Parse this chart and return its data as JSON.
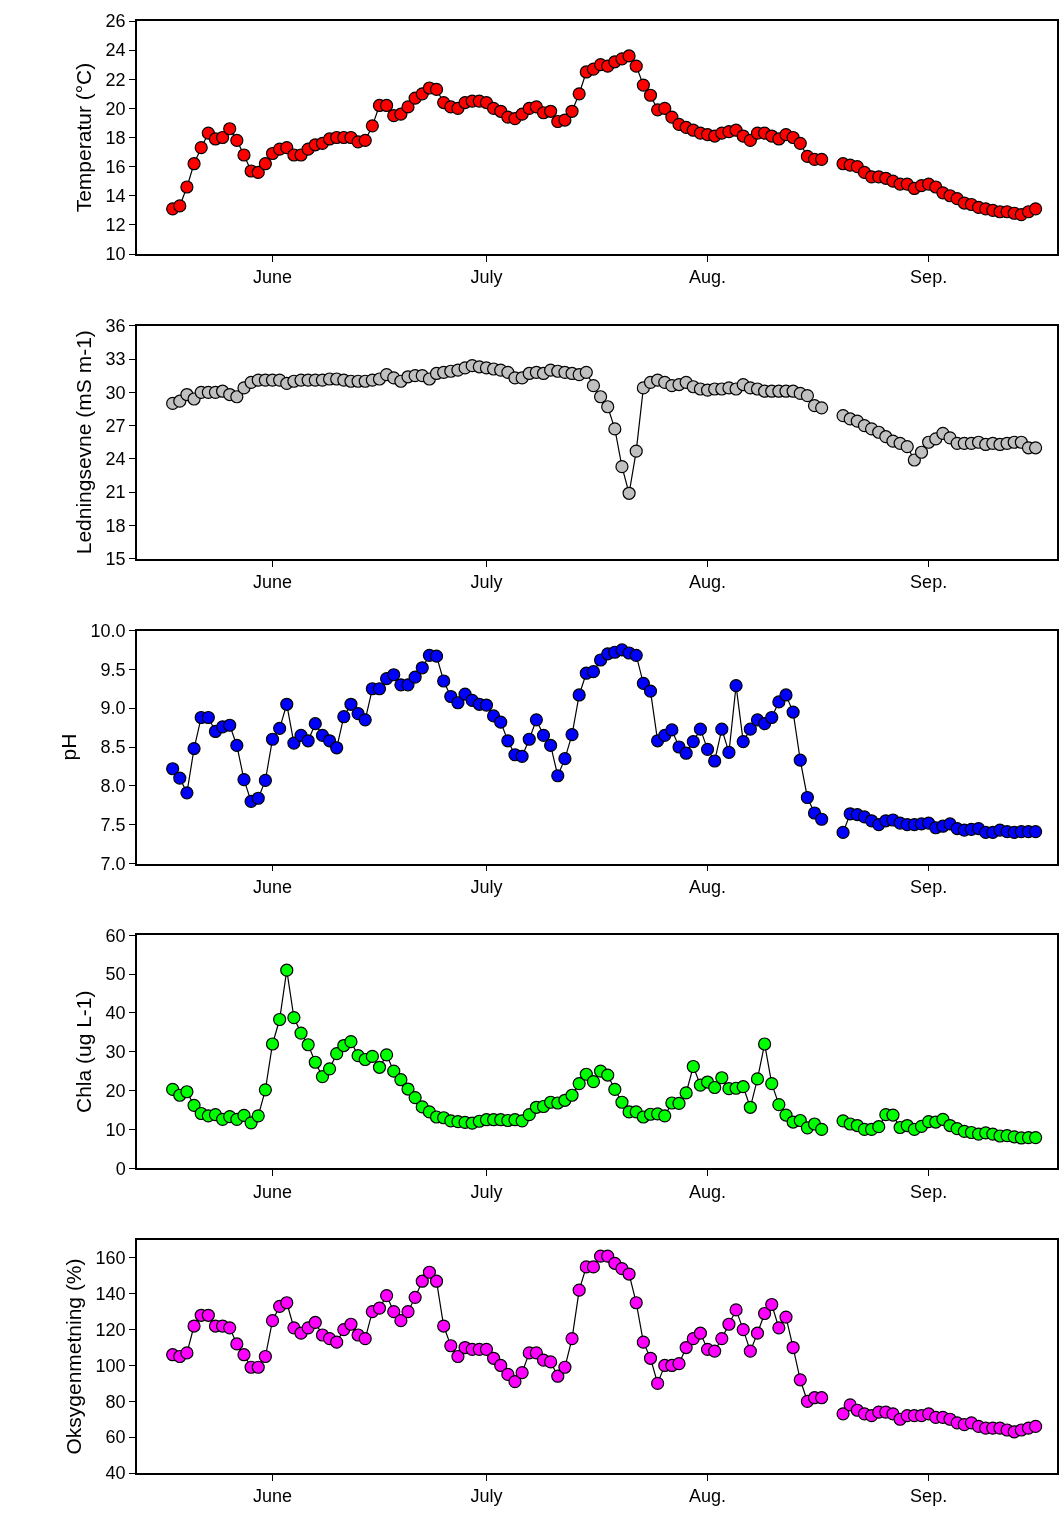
{
  "chart_data": [
    {
      "type": "line",
      "marker": "circle",
      "ylabel": "Temperatur (°C)",
      "ylim": [
        10,
        26
      ],
      "yticks": [
        10,
        12,
        14,
        16,
        18,
        20,
        22,
        24,
        26
      ],
      "xlim": [
        "--05-13",
        "--09-19"
      ],
      "xticks": [
        {
          "value": "--06-01",
          "label": "June"
        },
        {
          "value": "--07-01",
          "label": "July"
        },
        {
          "value": "--08-01",
          "label": "Aug."
        },
        {
          "value": "--09-01",
          "label": "Sep."
        }
      ],
      "x": [
        "--05-18",
        "--05-19",
        "--05-20",
        "--05-21",
        "--05-22",
        "--05-23",
        "--05-24",
        "--05-25",
        "--05-26",
        "--05-27",
        "--05-28",
        "--05-29",
        "--05-30",
        "--05-31",
        "--06-01",
        "--06-02",
        "--06-03",
        "--06-04",
        "--06-05",
        "--06-06",
        "--06-07",
        "--06-08",
        "--06-09",
        "--06-10",
        "--06-11",
        "--06-12",
        "--06-13",
        "--06-14",
        "--06-15",
        "--06-16",
        "--06-17",
        "--06-18",
        "--06-19",
        "--06-20",
        "--06-21",
        "--06-22",
        "--06-23",
        "--06-24",
        "--06-25",
        "--06-26",
        "--06-27",
        "--06-28",
        "--06-29",
        "--06-30",
        "--07-01",
        "--07-02",
        "--07-03",
        "--07-04",
        "--07-05",
        "--07-06",
        "--07-07",
        "--07-08",
        "--07-09",
        "--07-10",
        "--07-11",
        "--07-12",
        "--07-13",
        "--07-14",
        "--07-15",
        "--07-16",
        "--07-17",
        "--07-18",
        "--07-19",
        "--07-20",
        "--07-21",
        "--07-22",
        "--07-23",
        "--07-24",
        "--07-25",
        "--07-26",
        "--07-27",
        "--07-28",
        "--07-29",
        "--07-30",
        "--07-31",
        "--08-01",
        "--08-02",
        "--08-03",
        "--08-04",
        "--08-05",
        "--08-06",
        "--08-07",
        "--08-08",
        "--08-09",
        "--08-10",
        "--08-11",
        "--08-12",
        "--08-13",
        "--08-14",
        "--08-15",
        "--08-16",
        "--08-17",
        "--08-18",
        "--08-19",
        "--08-20",
        "--08-21",
        "--08-22",
        "--08-23",
        "--08-24",
        "--08-25",
        "--08-26",
        "--08-27",
        "--08-28",
        "--08-29",
        "--08-30",
        "--08-31",
        "--09-01",
        "--09-02",
        "--09-03",
        "--09-04",
        "--09-05",
        "--09-06",
        "--09-07",
        "--09-08",
        "--09-09",
        "--09-10",
        "--09-11",
        "--09-12",
        "--09-13",
        "--09-14",
        "--09-15",
        "--09-16"
      ],
      "series": [
        {
          "color": "#ff0000",
          "values": [
            13.1,
            13.3,
            14.6,
            16.2,
            17.3,
            18.3,
            17.9,
            18.0,
            18.6,
            17.8,
            16.8,
            15.7,
            15.6,
            16.2,
            16.9,
            17.2,
            17.3,
            16.8,
            16.8,
            17.2,
            17.5,
            17.6,
            17.9,
            18.0,
            18.0,
            18.0,
            17.7,
            17.8,
            18.8,
            20.2,
            20.2,
            19.5,
            19.6,
            20.1,
            20.7,
            21.0,
            21.4,
            21.3,
            20.4,
            20.1,
            20.0,
            20.4,
            20.5,
            20.5,
            20.4,
            20.0,
            19.8,
            19.4,
            19.3,
            19.6,
            20.0,
            20.1,
            19.7,
            19.8,
            19.1,
            19.2,
            19.8,
            21.0,
            22.5,
            22.7,
            23.0,
            22.9,
            23.2,
            23.4,
            23.6,
            22.9,
            21.6,
            20.9,
            19.9,
            20.0,
            19.4,
            18.9,
            18.7,
            18.5,
            18.3,
            18.2,
            18.1,
            18.3,
            18.4,
            18.5,
            18.1,
            17.8,
            18.3,
            18.3,
            18.1,
            17.9,
            18.2,
            18.0,
            17.6,
            16.7,
            16.5,
            16.5,
            null,
            null,
            16.2,
            16.1,
            16.0,
            15.6,
            15.3,
            15.3,
            15.2,
            15.0,
            14.8,
            14.8,
            14.5,
            14.7,
            14.8,
            14.6,
            14.2,
            14.0,
            13.8,
            13.5,
            13.4,
            13.2,
            13.1,
            13.0,
            12.9,
            12.9,
            12.8,
            12.7,
            12.9,
            13.1
          ]
        }
      ]
    },
    {
      "type": "line",
      "marker": "circle",
      "ylabel": "Ledningsevne (mS m-1)",
      "ylim": [
        15,
        36
      ],
      "yticks": [
        15,
        18,
        21,
        24,
        27,
        30,
        33,
        36
      ],
      "xlim": [
        "--05-13",
        "--09-19"
      ],
      "xticks": [
        {
          "value": "--06-01",
          "label": "June"
        },
        {
          "value": "--07-01",
          "label": "July"
        },
        {
          "value": "--08-01",
          "label": "Aug."
        },
        {
          "value": "--09-01",
          "label": "Sep."
        }
      ],
      "x": [
        "--05-18",
        "--05-19",
        "--05-20",
        "--05-21",
        "--05-22",
        "--05-23",
        "--05-24",
        "--05-25",
        "--05-26",
        "--05-27",
        "--05-28",
        "--05-29",
        "--05-30",
        "--05-31",
        "--06-01",
        "--06-02",
        "--06-03",
        "--06-04",
        "--06-05",
        "--06-06",
        "--06-07",
        "--06-08",
        "--06-09",
        "--06-10",
        "--06-11",
        "--06-12",
        "--06-13",
        "--06-14",
        "--06-15",
        "--06-16",
        "--06-17",
        "--06-18",
        "--06-19",
        "--06-20",
        "--06-21",
        "--06-22",
        "--06-23",
        "--06-24",
        "--06-25",
        "--06-26",
        "--06-27",
        "--06-28",
        "--06-29",
        "--06-30",
        "--07-01",
        "--07-02",
        "--07-03",
        "--07-04",
        "--07-05",
        "--07-06",
        "--07-07",
        "--07-08",
        "--07-09",
        "--07-10",
        "--07-11",
        "--07-12",
        "--07-13",
        "--07-14",
        "--07-15",
        "--07-16",
        "--07-17",
        "--07-18",
        "--07-19",
        "--07-20",
        "--07-21",
        "--07-22",
        "--07-23",
        "--07-24",
        "--07-25",
        "--07-26",
        "--07-27",
        "--07-28",
        "--07-29",
        "--07-30",
        "--07-31",
        "--08-01",
        "--08-02",
        "--08-03",
        "--08-04",
        "--08-05",
        "--08-06",
        "--08-07",
        "--08-08",
        "--08-09",
        "--08-10",
        "--08-11",
        "--08-12",
        "--08-13",
        "--08-14",
        "--08-15",
        "--08-16",
        "--08-17",
        "--08-18",
        "--08-19",
        "--08-20",
        "--08-21",
        "--08-22",
        "--08-23",
        "--08-24",
        "--08-25",
        "--08-26",
        "--08-27",
        "--08-28",
        "--08-29",
        "--08-30",
        "--08-31",
        "--09-01",
        "--09-02",
        "--09-03",
        "--09-04",
        "--09-05",
        "--09-06",
        "--09-07",
        "--09-08",
        "--09-09",
        "--09-10",
        "--09-11",
        "--09-12",
        "--09-13",
        "--09-14",
        "--09-15",
        "--09-16"
      ],
      "series": [
        {
          "color": "#c0c0c0",
          "values": [
            29.0,
            29.2,
            29.8,
            29.4,
            30.0,
            30.0,
            30.0,
            30.1,
            29.8,
            29.6,
            30.4,
            30.9,
            31.1,
            31.1,
            31.1,
            31.1,
            30.8,
            31.0,
            31.1,
            31.1,
            31.1,
            31.1,
            31.2,
            31.2,
            31.1,
            31.0,
            31.0,
            31.0,
            31.1,
            31.2,
            31.6,
            31.3,
            31.0,
            31.4,
            31.5,
            31.5,
            31.2,
            31.7,
            31.8,
            31.9,
            32.0,
            32.2,
            32.4,
            32.3,
            32.2,
            32.1,
            32.0,
            31.8,
            31.3,
            31.3,
            31.7,
            31.8,
            31.7,
            32.0,
            31.9,
            31.8,
            31.7,
            31.6,
            31.8,
            30.6,
            29.6,
            28.7,
            26.7,
            23.3,
            20.9,
            24.7,
            30.4,
            30.9,
            31.1,
            30.9,
            30.6,
            30.7,
            30.9,
            30.5,
            30.3,
            30.2,
            30.3,
            30.3,
            30.4,
            30.3,
            30.7,
            30.4,
            30.3,
            30.1,
            30.1,
            30.1,
            30.1,
            30.1,
            29.9,
            29.7,
            28.8,
            28.6,
            null,
            null,
            27.9,
            27.6,
            27.4,
            27.0,
            26.7,
            26.4,
            26.0,
            25.6,
            25.4,
            25.1,
            23.9,
            24.6,
            25.5,
            25.8,
            26.3,
            25.9,
            25.4,
            25.4,
            25.4,
            25.5,
            25.3,
            25.4,
            25.3,
            25.4,
            25.5,
            25.5,
            25.0,
            25.0
          ]
        }
      ]
    },
    {
      "type": "line",
      "marker": "circle",
      "ylabel": "pH",
      "ylim": [
        7,
        10
      ],
      "yticks": [
        {
          "value": 7,
          "label": "7.0"
        },
        7.5,
        {
          "value": 8,
          "label": "8.0"
        },
        8.5,
        {
          "value": 9,
          "label": "9.0"
        },
        9.5,
        {
          "value": 10,
          "label": "10.0"
        }
      ],
      "xlim": [
        "--05-13",
        "--09-19"
      ],
      "xticks": [
        {
          "value": "--06-01",
          "label": "June"
        },
        {
          "value": "--07-01",
          "label": "July"
        },
        {
          "value": "--08-01",
          "label": "Aug."
        },
        {
          "value": "--09-01",
          "label": "Sep."
        }
      ],
      "x": [
        "--05-18",
        "--05-19",
        "--05-20",
        "--05-21",
        "--05-22",
        "--05-23",
        "--05-24",
        "--05-25",
        "--05-26",
        "--05-27",
        "--05-28",
        "--05-29",
        "--05-30",
        "--05-31",
        "--06-01",
        "--06-02",
        "--06-03",
        "--06-04",
        "--06-05",
        "--06-06",
        "--06-07",
        "--06-08",
        "--06-09",
        "--06-10",
        "--06-11",
        "--06-12",
        "--06-13",
        "--06-14",
        "--06-15",
        "--06-16",
        "--06-17",
        "--06-18",
        "--06-19",
        "--06-20",
        "--06-21",
        "--06-22",
        "--06-23",
        "--06-24",
        "--06-25",
        "--06-26",
        "--06-27",
        "--06-28",
        "--06-29",
        "--06-30",
        "--07-01",
        "--07-02",
        "--07-03",
        "--07-04",
        "--07-05",
        "--07-06",
        "--07-07",
        "--07-08",
        "--07-09",
        "--07-10",
        "--07-11",
        "--07-12",
        "--07-13",
        "--07-14",
        "--07-15",
        "--07-16",
        "--07-17",
        "--07-18",
        "--07-19",
        "--07-20",
        "--07-21",
        "--07-22",
        "--07-23",
        "--07-24",
        "--07-25",
        "--07-26",
        "--07-27",
        "--07-28",
        "--07-29",
        "--07-30",
        "--07-31",
        "--08-01",
        "--08-02",
        "--08-03",
        "--08-04",
        "--08-05",
        "--08-06",
        "--08-07",
        "--08-08",
        "--08-09",
        "--08-10",
        "--08-11",
        "--08-12",
        "--08-13",
        "--08-14",
        "--08-15",
        "--08-16",
        "--08-17",
        "--08-18",
        "--08-19",
        "--08-20",
        "--08-21",
        "--08-22",
        "--08-23",
        "--08-24",
        "--08-25",
        "--08-26",
        "--08-27",
        "--08-28",
        "--08-29",
        "--08-30",
        "--08-31",
        "--09-01",
        "--09-02",
        "--09-03",
        "--09-04",
        "--09-05",
        "--09-06",
        "--09-07",
        "--09-08",
        "--09-09",
        "--09-10",
        "--09-11",
        "--09-12",
        "--09-13",
        "--09-14",
        "--09-15",
        "--09-16"
      ],
      "series": [
        {
          "color": "#0000ff",
          "values": [
            8.22,
            8.1,
            7.91,
            8.48,
            8.88,
            8.88,
            8.7,
            8.76,
            8.78,
            8.52,
            8.08,
            7.8,
            7.84,
            8.07,
            8.6,
            8.74,
            9.05,
            8.55,
            8.65,
            8.58,
            8.8,
            8.65,
            8.58,
            8.49,
            8.89,
            9.05,
            8.93,
            8.85,
            9.25,
            9.25,
            9.38,
            9.43,
            9.3,
            9.3,
            9.4,
            9.52,
            9.68,
            9.67,
            9.35,
            9.15,
            9.07,
            9.18,
            9.1,
            9.05,
            9.04,
            8.9,
            8.82,
            8.58,
            8.4,
            8.38,
            8.6,
            8.85,
            8.65,
            8.52,
            8.13,
            8.35,
            8.66,
            9.17,
            9.45,
            9.47,
            9.62,
            9.7,
            9.72,
            9.75,
            9.71,
            9.68,
            9.32,
            9.22,
            8.58,
            8.65,
            8.72,
            8.5,
            8.42,
            8.57,
            8.73,
            8.47,
            8.32,
            8.73,
            8.43,
            9.29,
            8.57,
            8.73,
            8.85,
            8.8,
            8.88,
            9.08,
            9.17,
            8.95,
            8.33,
            7.85,
            7.65,
            7.57,
            null,
            null,
            7.4,
            7.64,
            7.63,
            7.6,
            7.55,
            7.5,
            7.55,
            7.56,
            7.52,
            7.5,
            7.5,
            7.51,
            7.52,
            7.46,
            7.48,
            7.51,
            7.45,
            7.43,
            7.44,
            7.45,
            7.4,
            7.4,
            7.43,
            7.41,
            7.4,
            7.41,
            7.41,
            7.41
          ]
        }
      ]
    },
    {
      "type": "line",
      "marker": "circle",
      "ylabel": "Chla (ug L-1)",
      "ylim": [
        0,
        60
      ],
      "yticks": [
        0,
        10,
        20,
        30,
        40,
        50,
        60
      ],
      "xlim": [
        "--05-13",
        "--09-19"
      ],
      "xticks": [
        {
          "value": "--06-01",
          "label": "June"
        },
        {
          "value": "--07-01",
          "label": "July"
        },
        {
          "value": "--08-01",
          "label": "Aug."
        },
        {
          "value": "--09-01",
          "label": "Sep."
        }
      ],
      "x": [
        "--05-18",
        "--05-19",
        "--05-20",
        "--05-21",
        "--05-22",
        "--05-23",
        "--05-24",
        "--05-25",
        "--05-26",
        "--05-27",
        "--05-28",
        "--05-29",
        "--05-30",
        "--05-31",
        "--06-01",
        "--06-02",
        "--06-03",
        "--06-04",
        "--06-05",
        "--06-06",
        "--06-07",
        "--06-08",
        "--06-09",
        "--06-10",
        "--06-11",
        "--06-12",
        "--06-13",
        "--06-14",
        "--06-15",
        "--06-16",
        "--06-17",
        "--06-18",
        "--06-19",
        "--06-20",
        "--06-21",
        "--06-22",
        "--06-23",
        "--06-24",
        "--06-25",
        "--06-26",
        "--06-27",
        "--06-28",
        "--06-29",
        "--06-30",
        "--07-01",
        "--07-02",
        "--07-03",
        "--07-04",
        "--07-05",
        "--07-06",
        "--07-07",
        "--07-08",
        "--07-09",
        "--07-10",
        "--07-11",
        "--07-12",
        "--07-13",
        "--07-14",
        "--07-15",
        "--07-16",
        "--07-17",
        "--07-18",
        "--07-19",
        "--07-20",
        "--07-21",
        "--07-22",
        "--07-23",
        "--07-24",
        "--07-25",
        "--07-26",
        "--07-27",
        "--07-28",
        "--07-29",
        "--07-30",
        "--07-31",
        "--08-01",
        "--08-02",
        "--08-03",
        "--08-04",
        "--08-05",
        "--08-06",
        "--08-07",
        "--08-08",
        "--08-09",
        "--08-10",
        "--08-11",
        "--08-12",
        "--08-13",
        "--08-14",
        "--08-15",
        "--08-16",
        "--08-17",
        "--08-18",
        "--08-19",
        "--08-20",
        "--08-21",
        "--08-22",
        "--08-23",
        "--08-24",
        "--08-25",
        "--08-26",
        "--08-27",
        "--08-28",
        "--08-29",
        "--08-30",
        "--08-31",
        "--09-01",
        "--09-02",
        "--09-03",
        "--09-04",
        "--09-05",
        "--09-06",
        "--09-07",
        "--09-08",
        "--09-09",
        "--09-10",
        "--09-11",
        "--09-12",
        "--09-13",
        "--09-14",
        "--09-15",
        "--09-16"
      ],
      "series": [
        {
          "color": "#00ff00",
          "values": [
            20.3,
            18.8,
            19.7,
            16.2,
            14.1,
            13.5,
            13.8,
            12.6,
            13.3,
            12.6,
            13.6,
            11.7,
            13.5,
            20.2,
            32.0,
            38.3,
            51.0,
            38.8,
            34.8,
            31.8,
            27.3,
            23.6,
            25.6,
            29.5,
            31.6,
            32.6,
            29.0,
            28.0,
            28.8,
            26.0,
            29.2,
            25.0,
            22.8,
            20.4,
            18.2,
            15.8,
            14.5,
            13.2,
            13.0,
            12.2,
            12.0,
            11.8,
            11.6,
            12.1,
            12.5,
            12.5,
            12.5,
            12.3,
            12.5,
            12.2,
            13.8,
            15.7,
            15.9,
            17.0,
            16.8,
            17.5,
            18.8,
            21.8,
            24.2,
            22.3,
            25.0,
            24.0,
            20.3,
            17.0,
            14.5,
            14.5,
            13.2,
            13.9,
            14.0,
            13.5,
            16.8,
            16.7,
            19.4,
            26.2,
            21.4,
            22.2,
            20.8,
            23.3,
            20.5,
            20.6,
            21.0,
            15.7,
            23.0,
            32.0,
            21.8,
            16.4,
            13.7,
            11.9,
            12.3,
            10.4,
            11.4,
            10.0,
            null,
            null,
            12.2,
            11.4,
            11.0,
            10.0,
            10.0,
            10.7,
            13.8,
            13.7,
            10.5,
            11.0,
            10.0,
            10.8,
            12.0,
            11.9,
            12.6,
            11.0,
            10.2,
            9.5,
            9.2,
            8.8,
            9.1,
            8.8,
            8.3,
            8.4,
            8.1,
            7.8,
            7.9,
            7.9
          ]
        }
      ]
    },
    {
      "type": "line",
      "marker": "circle",
      "ylabel": "Oksygenmetning (%)",
      "ylim": [
        40,
        170
      ],
      "yticks": [
        40,
        60,
        80,
        100,
        120,
        140,
        160
      ],
      "xlim": [
        "--05-13",
        "--09-19"
      ],
      "xticks": [
        {
          "value": "--06-01",
          "label": "June"
        },
        {
          "value": "--07-01",
          "label": "July"
        },
        {
          "value": "--08-01",
          "label": "Aug."
        },
        {
          "value": "--09-01",
          "label": "Sep."
        }
      ],
      "x": [
        "--05-18",
        "--05-19",
        "--05-20",
        "--05-21",
        "--05-22",
        "--05-23",
        "--05-24",
        "--05-25",
        "--05-26",
        "--05-27",
        "--05-28",
        "--05-29",
        "--05-30",
        "--05-31",
        "--06-01",
        "--06-02",
        "--06-03",
        "--06-04",
        "--06-05",
        "--06-06",
        "--06-07",
        "--06-08",
        "--06-09",
        "--06-10",
        "--06-11",
        "--06-12",
        "--06-13",
        "--06-14",
        "--06-15",
        "--06-16",
        "--06-17",
        "--06-18",
        "--06-19",
        "--06-20",
        "--06-21",
        "--06-22",
        "--06-23",
        "--06-24",
        "--06-25",
        "--06-26",
        "--06-27",
        "--06-28",
        "--06-29",
        "--06-30",
        "--07-01",
        "--07-02",
        "--07-03",
        "--07-04",
        "--07-05",
        "--07-06",
        "--07-07",
        "--07-08",
        "--07-09",
        "--07-10",
        "--07-11",
        "--07-12",
        "--07-13",
        "--07-14",
        "--07-15",
        "--07-16",
        "--07-17",
        "--07-18",
        "--07-19",
        "--07-20",
        "--07-21",
        "--07-22",
        "--07-23",
        "--07-24",
        "--07-25",
        "--07-26",
        "--07-27",
        "--07-28",
        "--07-29",
        "--07-30",
        "--07-31",
        "--08-01",
        "--08-02",
        "--08-03",
        "--08-04",
        "--08-05",
        "--08-06",
        "--08-07",
        "--08-08",
        "--08-09",
        "--08-10",
        "--08-11",
        "--08-12",
        "--08-13",
        "--08-14",
        "--08-15",
        "--08-16",
        "--08-17",
        "--08-18",
        "--08-19",
        "--08-20",
        "--08-21",
        "--08-22",
        "--08-23",
        "--08-24",
        "--08-25",
        "--08-26",
        "--08-27",
        "--08-28",
        "--08-29",
        "--08-30",
        "--08-31",
        "--09-01",
        "--09-02",
        "--09-03",
        "--09-04",
        "--09-05",
        "--09-06",
        "--09-07",
        "--09-08",
        "--09-09",
        "--09-10",
        "--09-11",
        "--09-12",
        "--09-13",
        "--09-14",
        "--09-15",
        "--09-16"
      ],
      "series": [
        {
          "color": "#ff00ff",
          "values": [
            106,
            105,
            107,
            122,
            128,
            128,
            122,
            122,
            121,
            112,
            106,
            99,
            99,
            105,
            125,
            133,
            135,
            121,
            118,
            121,
            124,
            117,
            115,
            113,
            120,
            123,
            117,
            115,
            130,
            132,
            139,
            130,
            125,
            130,
            138,
            147,
            152,
            147,
            122,
            111,
            105,
            110,
            109,
            109,
            109,
            104,
            100,
            95,
            91,
            96,
            107,
            107,
            103,
            102,
            94,
            99,
            115,
            142,
            155,
            155,
            161,
            161,
            157,
            154,
            151,
            135,
            113,
            104,
            90,
            100,
            100,
            101,
            110,
            115,
            118,
            109,
            108,
            115,
            123,
            131,
            120,
            108,
            118,
            129,
            134,
            121,
            127,
            110,
            92,
            80,
            82,
            82,
            null,
            null,
            73,
            78,
            75,
            73,
            72,
            74,
            74,
            73,
            70,
            72,
            72,
            72,
            73,
            71,
            71,
            70,
            68,
            67,
            68,
            66,
            65,
            65,
            65,
            64,
            63,
            64,
            65,
            66
          ]
        }
      ]
    }
  ]
}
